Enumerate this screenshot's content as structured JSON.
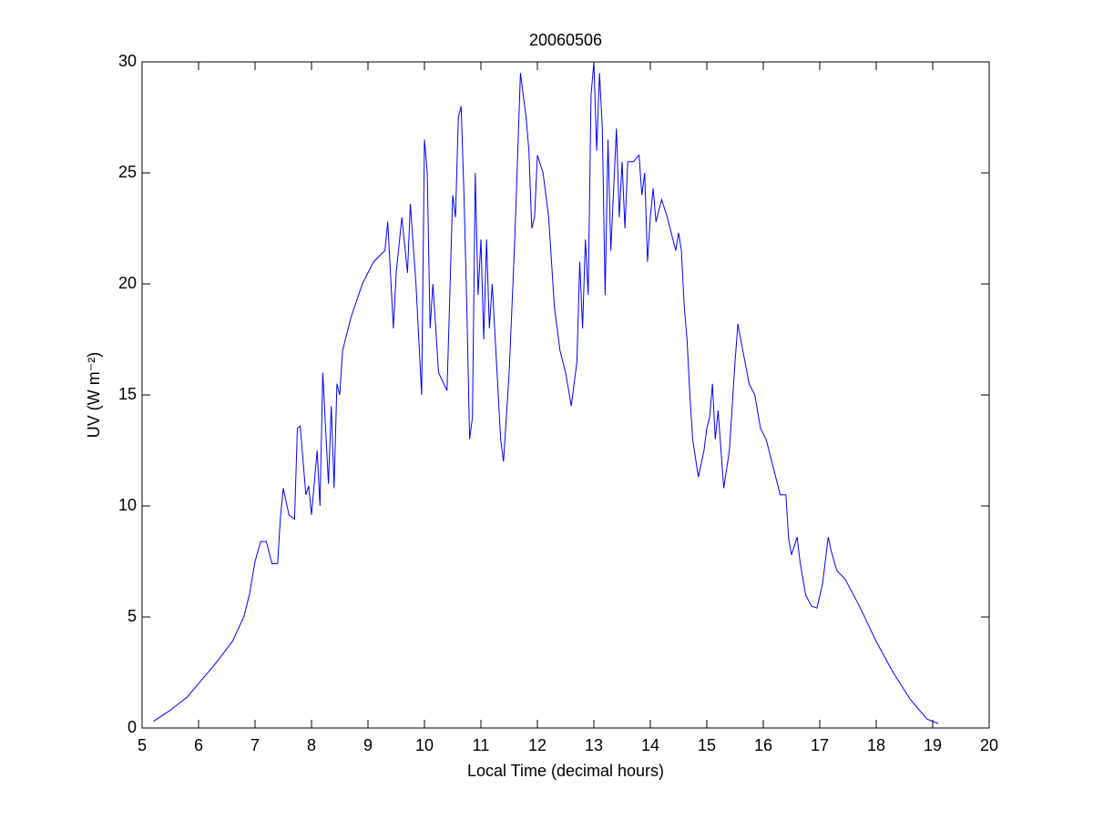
{
  "chart_data": {
    "type": "line",
    "title": "20060506",
    "x_label": "Local Time (decimal hours)",
    "y_label": "UV (W m⁻²)",
    "xlim": [
      5,
      20
    ],
    "ylim": [
      0,
      30
    ],
    "xticks": [
      5,
      6,
      7,
      8,
      9,
      10,
      11,
      12,
      13,
      14,
      15,
      16,
      17,
      18,
      19,
      20
    ],
    "yticks": [
      0,
      5,
      10,
      15,
      20,
      25,
      30
    ],
    "grid": false,
    "series": [
      {
        "color": "#0000ff",
        "x": [
          5.2,
          5.5,
          5.8,
          6.0,
          6.3,
          6.6,
          6.8,
          6.9,
          7.0,
          7.1,
          7.2,
          7.3,
          7.4,
          7.45,
          7.5,
          7.6,
          7.7,
          7.75,
          7.8,
          7.9,
          7.95,
          8.0,
          8.1,
          8.15,
          8.2,
          8.3,
          8.35,
          8.4,
          8.45,
          8.5,
          8.55,
          8.7,
          8.9,
          9.1,
          9.3,
          9.35,
          9.45,
          9.5,
          9.6,
          9.7,
          9.75,
          9.85,
          9.95,
          10.0,
          10.05,
          10.1,
          10.15,
          10.25,
          10.4,
          10.5,
          10.55,
          10.6,
          10.65,
          10.7,
          10.75,
          10.8,
          10.85,
          10.9,
          10.95,
          11.0,
          11.05,
          11.1,
          11.15,
          11.2,
          11.35,
          11.4,
          11.5,
          11.6,
          11.7,
          11.8,
          11.85,
          11.9,
          11.95,
          12.0,
          12.1,
          12.2,
          12.3,
          12.4,
          12.5,
          12.6,
          12.7,
          12.75,
          12.8,
          12.85,
          12.9,
          12.95,
          13.0,
          13.05,
          13.1,
          13.15,
          13.2,
          13.25,
          13.3,
          13.4,
          13.45,
          13.5,
          13.55,
          13.6,
          13.7,
          13.8,
          13.85,
          13.9,
          13.95,
          14.0,
          14.05,
          14.1,
          14.2,
          14.3,
          14.4,
          14.45,
          14.5,
          14.55,
          14.6,
          14.65,
          14.7,
          14.75,
          14.85,
          14.95,
          15.0,
          15.05,
          15.1,
          15.15,
          15.2,
          15.3,
          15.4,
          15.45,
          15.5,
          15.55,
          15.6,
          15.75,
          15.85,
          15.95,
          16.05,
          16.15,
          16.3,
          16.4,
          16.45,
          16.5,
          16.6,
          16.65,
          16.75,
          16.85,
          16.95,
          17.05,
          17.15,
          17.2,
          17.3,
          17.45,
          17.7,
          18.0,
          18.3,
          18.6,
          18.9,
          19.1
        ],
        "values": [
          0.3,
          0.8,
          1.4,
          2.0,
          2.9,
          3.9,
          5.0,
          6.0,
          7.5,
          8.4,
          8.4,
          7.4,
          7.4,
          9.5,
          10.8,
          9.6,
          9.4,
          13.5,
          13.6,
          10.5,
          10.9,
          9.6,
          12.5,
          10.0,
          16.0,
          11.0,
          14.5,
          10.8,
          15.5,
          15.0,
          17.0,
          18.5,
          20.0,
          21.0,
          21.5,
          22.8,
          18.0,
          20.5,
          23.0,
          20.5,
          23.6,
          20.0,
          15.0,
          26.5,
          25.0,
          18.0,
          20.0,
          16.0,
          15.2,
          24.0,
          23.0,
          27.5,
          28.0,
          24.0,
          19.0,
          13.0,
          14.0,
          25.0,
          19.5,
          22.0,
          17.5,
          22.0,
          18.0,
          20.0,
          13.0,
          12.0,
          16.0,
          22.0,
          29.5,
          27.5,
          26.0,
          22.5,
          23.0,
          25.8,
          25.0,
          23.0,
          19.0,
          17.0,
          16.0,
          14.5,
          16.5,
          21.0,
          18.0,
          22.0,
          19.5,
          28.5,
          30.0,
          26.0,
          29.5,
          27.0,
          19.5,
          26.5,
          21.5,
          27.0,
          23.0,
          25.5,
          22.5,
          25.5,
          25.5,
          25.8,
          24.0,
          25.0,
          21.0,
          23.0,
          24.3,
          22.8,
          23.8,
          23.0,
          22.0,
          21.5,
          22.3,
          21.5,
          19.0,
          17.5,
          15.0,
          13.0,
          11.3,
          12.5,
          13.5,
          14.0,
          15.5,
          13.0,
          14.3,
          10.8,
          12.5,
          14.5,
          16.5,
          18.2,
          17.5,
          15.5,
          15.0,
          13.5,
          13.0,
          12.0,
          10.5,
          10.5,
          8.5,
          7.8,
          8.6,
          7.5,
          6.0,
          5.5,
          5.4,
          6.5,
          8.6,
          8.0,
          7.1,
          6.7,
          5.5,
          3.9,
          2.5,
          1.3,
          0.4,
          0.2
        ]
      }
    ]
  }
}
